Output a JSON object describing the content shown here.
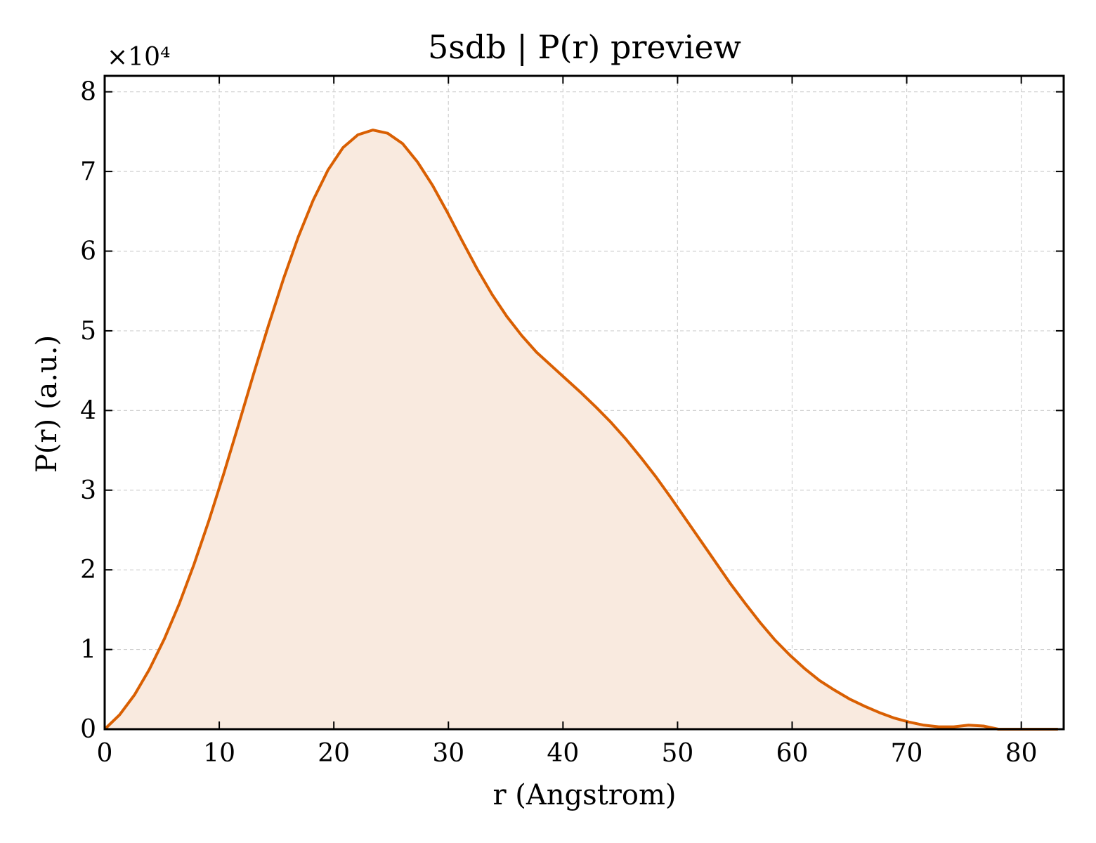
{
  "chart_data": {
    "type": "area",
    "title": "5sdb | P(r) preview",
    "xlabel": "r (Angstrom)",
    "ylabel": "P(r) (a.u.)",
    "y_multiplier_label": "×10⁴",
    "xlim": [
      0,
      83.7
    ],
    "ylim": [
      0,
      82000
    ],
    "x_ticks": [
      0,
      10,
      20,
      30,
      40,
      50,
      60,
      70,
      80
    ],
    "y_ticks": [
      0,
      10000,
      20000,
      30000,
      40000,
      50000,
      60000,
      70000,
      80000
    ],
    "x_tick_labels": [
      "0",
      "10",
      "20",
      "30",
      "40",
      "50",
      "60",
      "70",
      "80"
    ],
    "y_tick_labels": [
      "0",
      "1",
      "2",
      "3",
      "4",
      "5",
      "6",
      "7",
      "8"
    ],
    "grid": true,
    "line_color": "#d95f02",
    "fill_color": "#f9eadf",
    "series": [
      {
        "x": [
          0,
          1.3,
          2.6,
          3.9,
          5.2,
          6.5,
          7.8,
          9.1,
          10.4,
          11.7,
          13.0,
          14.3,
          15.6,
          16.9,
          18.2,
          19.5,
          20.8,
          22.1,
          23.4,
          24.7,
          26.0,
          27.3,
          28.6,
          29.9,
          31.2,
          32.5,
          33.8,
          35.1,
          36.4,
          37.7,
          39.0,
          40.3,
          41.6,
          42.9,
          44.2,
          45.5,
          46.8,
          48.1,
          49.4,
          50.7,
          52.0,
          53.3,
          54.6,
          55.9,
          57.2,
          58.5,
          59.8,
          61.1,
          62.4,
          63.7,
          65.0,
          66.3,
          67.6,
          68.9,
          70.2,
          71.5,
          72.8,
          74.1,
          75.4,
          76.7,
          78.0,
          79.3,
          80.6,
          81.9,
          83.2
        ],
        "values": [
          0,
          1800,
          4300,
          7500,
          11300,
          15700,
          20700,
          26200,
          32100,
          38300,
          44600,
          50700,
          56500,
          61800,
          66400,
          70200,
          73000,
          74600,
          75200,
          74800,
          73500,
          71200,
          68300,
          64900,
          61300,
          57800,
          54600,
          51800,
          49400,
          47300,
          45600,
          43900,
          42200,
          40400,
          38500,
          36400,
          34100,
          31700,
          29100,
          26400,
          23700,
          21000,
          18300,
          15800,
          13400,
          11200,
          9300,
          7600,
          6100,
          4900,
          3800,
          2900,
          2100,
          1400,
          900,
          500,
          300,
          300,
          500,
          400,
          0,
          0,
          0,
          0,
          0
        ]
      }
    ]
  }
}
